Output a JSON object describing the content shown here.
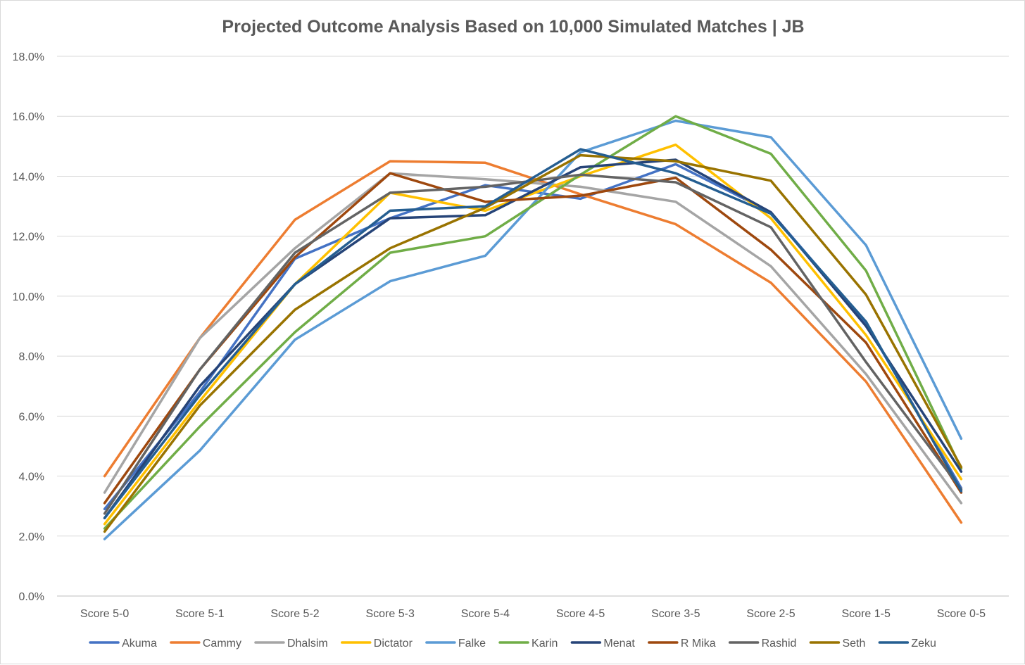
{
  "chart_data": {
    "type": "line",
    "title": "Projected Outcome Analysis Based on 10,000 Simulated Matches | JB",
    "xlabel": "",
    "ylabel": "",
    "categories": [
      "Score 5-0",
      "Score 5-1",
      "Score 5-2",
      "Score 5-3",
      "Score 5-4",
      "Score 4-5",
      "Score 3-5",
      "Score 2-5",
      "Score 1-5",
      "Score 0-5"
    ],
    "ylim": [
      0,
      18
    ],
    "y_ticks": [
      "0.0%",
      "2.0%",
      "4.0%",
      "6.0%",
      "8.0%",
      "10.0%",
      "12.0%",
      "14.0%",
      "16.0%",
      "18.0%"
    ],
    "grid": true,
    "legend": "bottom",
    "series": [
      {
        "name": "Akuma",
        "color": "#4472C4",
        "values": [
          2.9,
          6.8,
          11.25,
          12.6,
          13.7,
          13.25,
          14.4,
          12.8,
          9.1,
          3.6
        ]
      },
      {
        "name": "Cammy",
        "color": "#ED7D31",
        "values": [
          4.0,
          8.6,
          12.55,
          14.5,
          14.45,
          13.4,
          12.4,
          10.45,
          7.15,
          2.45
        ]
      },
      {
        "name": "Dhalsim",
        "color": "#A5A5A5",
        "values": [
          3.45,
          8.6,
          11.6,
          14.1,
          13.9,
          13.65,
          13.15,
          11.0,
          7.4,
          3.1
        ]
      },
      {
        "name": "Dictator",
        "color": "#FFC000",
        "values": [
          2.4,
          6.5,
          10.4,
          13.45,
          12.85,
          14.0,
          15.05,
          12.6,
          8.7,
          3.9
        ]
      },
      {
        "name": "Falke",
        "color": "#5B9BD5",
        "values": [
          1.9,
          4.85,
          8.55,
          10.5,
          11.35,
          14.8,
          15.85,
          15.3,
          11.7,
          5.25
        ]
      },
      {
        "name": "Karin",
        "color": "#70AD47",
        "values": [
          2.25,
          5.65,
          8.8,
          11.45,
          12.0,
          14.05,
          16.0,
          14.75,
          10.85,
          4.25
        ]
      },
      {
        "name": "Menat",
        "color": "#264478",
        "values": [
          2.6,
          7.0,
          10.4,
          12.6,
          12.7,
          14.3,
          14.55,
          12.8,
          9.0,
          4.15
        ]
      },
      {
        "name": "R Mika",
        "color": "#9E480E",
        "values": [
          3.1,
          7.55,
          11.3,
          14.1,
          13.15,
          13.35,
          13.95,
          11.55,
          8.45,
          3.45
        ]
      },
      {
        "name": "Rashid",
        "color": "#636363",
        "values": [
          2.75,
          7.55,
          11.45,
          13.45,
          13.65,
          14.05,
          13.8,
          12.3,
          7.8,
          3.55
        ]
      },
      {
        "name": "Seth",
        "color": "#997300",
        "values": [
          2.15,
          6.35,
          9.55,
          11.6,
          12.95,
          14.7,
          14.5,
          13.85,
          10.05,
          4.3
        ]
      },
      {
        "name": "Zeku",
        "color": "#255E91",
        "values": [
          2.6,
          6.7,
          10.4,
          12.85,
          13.0,
          14.9,
          14.1,
          12.75,
          9.15,
          3.5
        ]
      }
    ]
  }
}
